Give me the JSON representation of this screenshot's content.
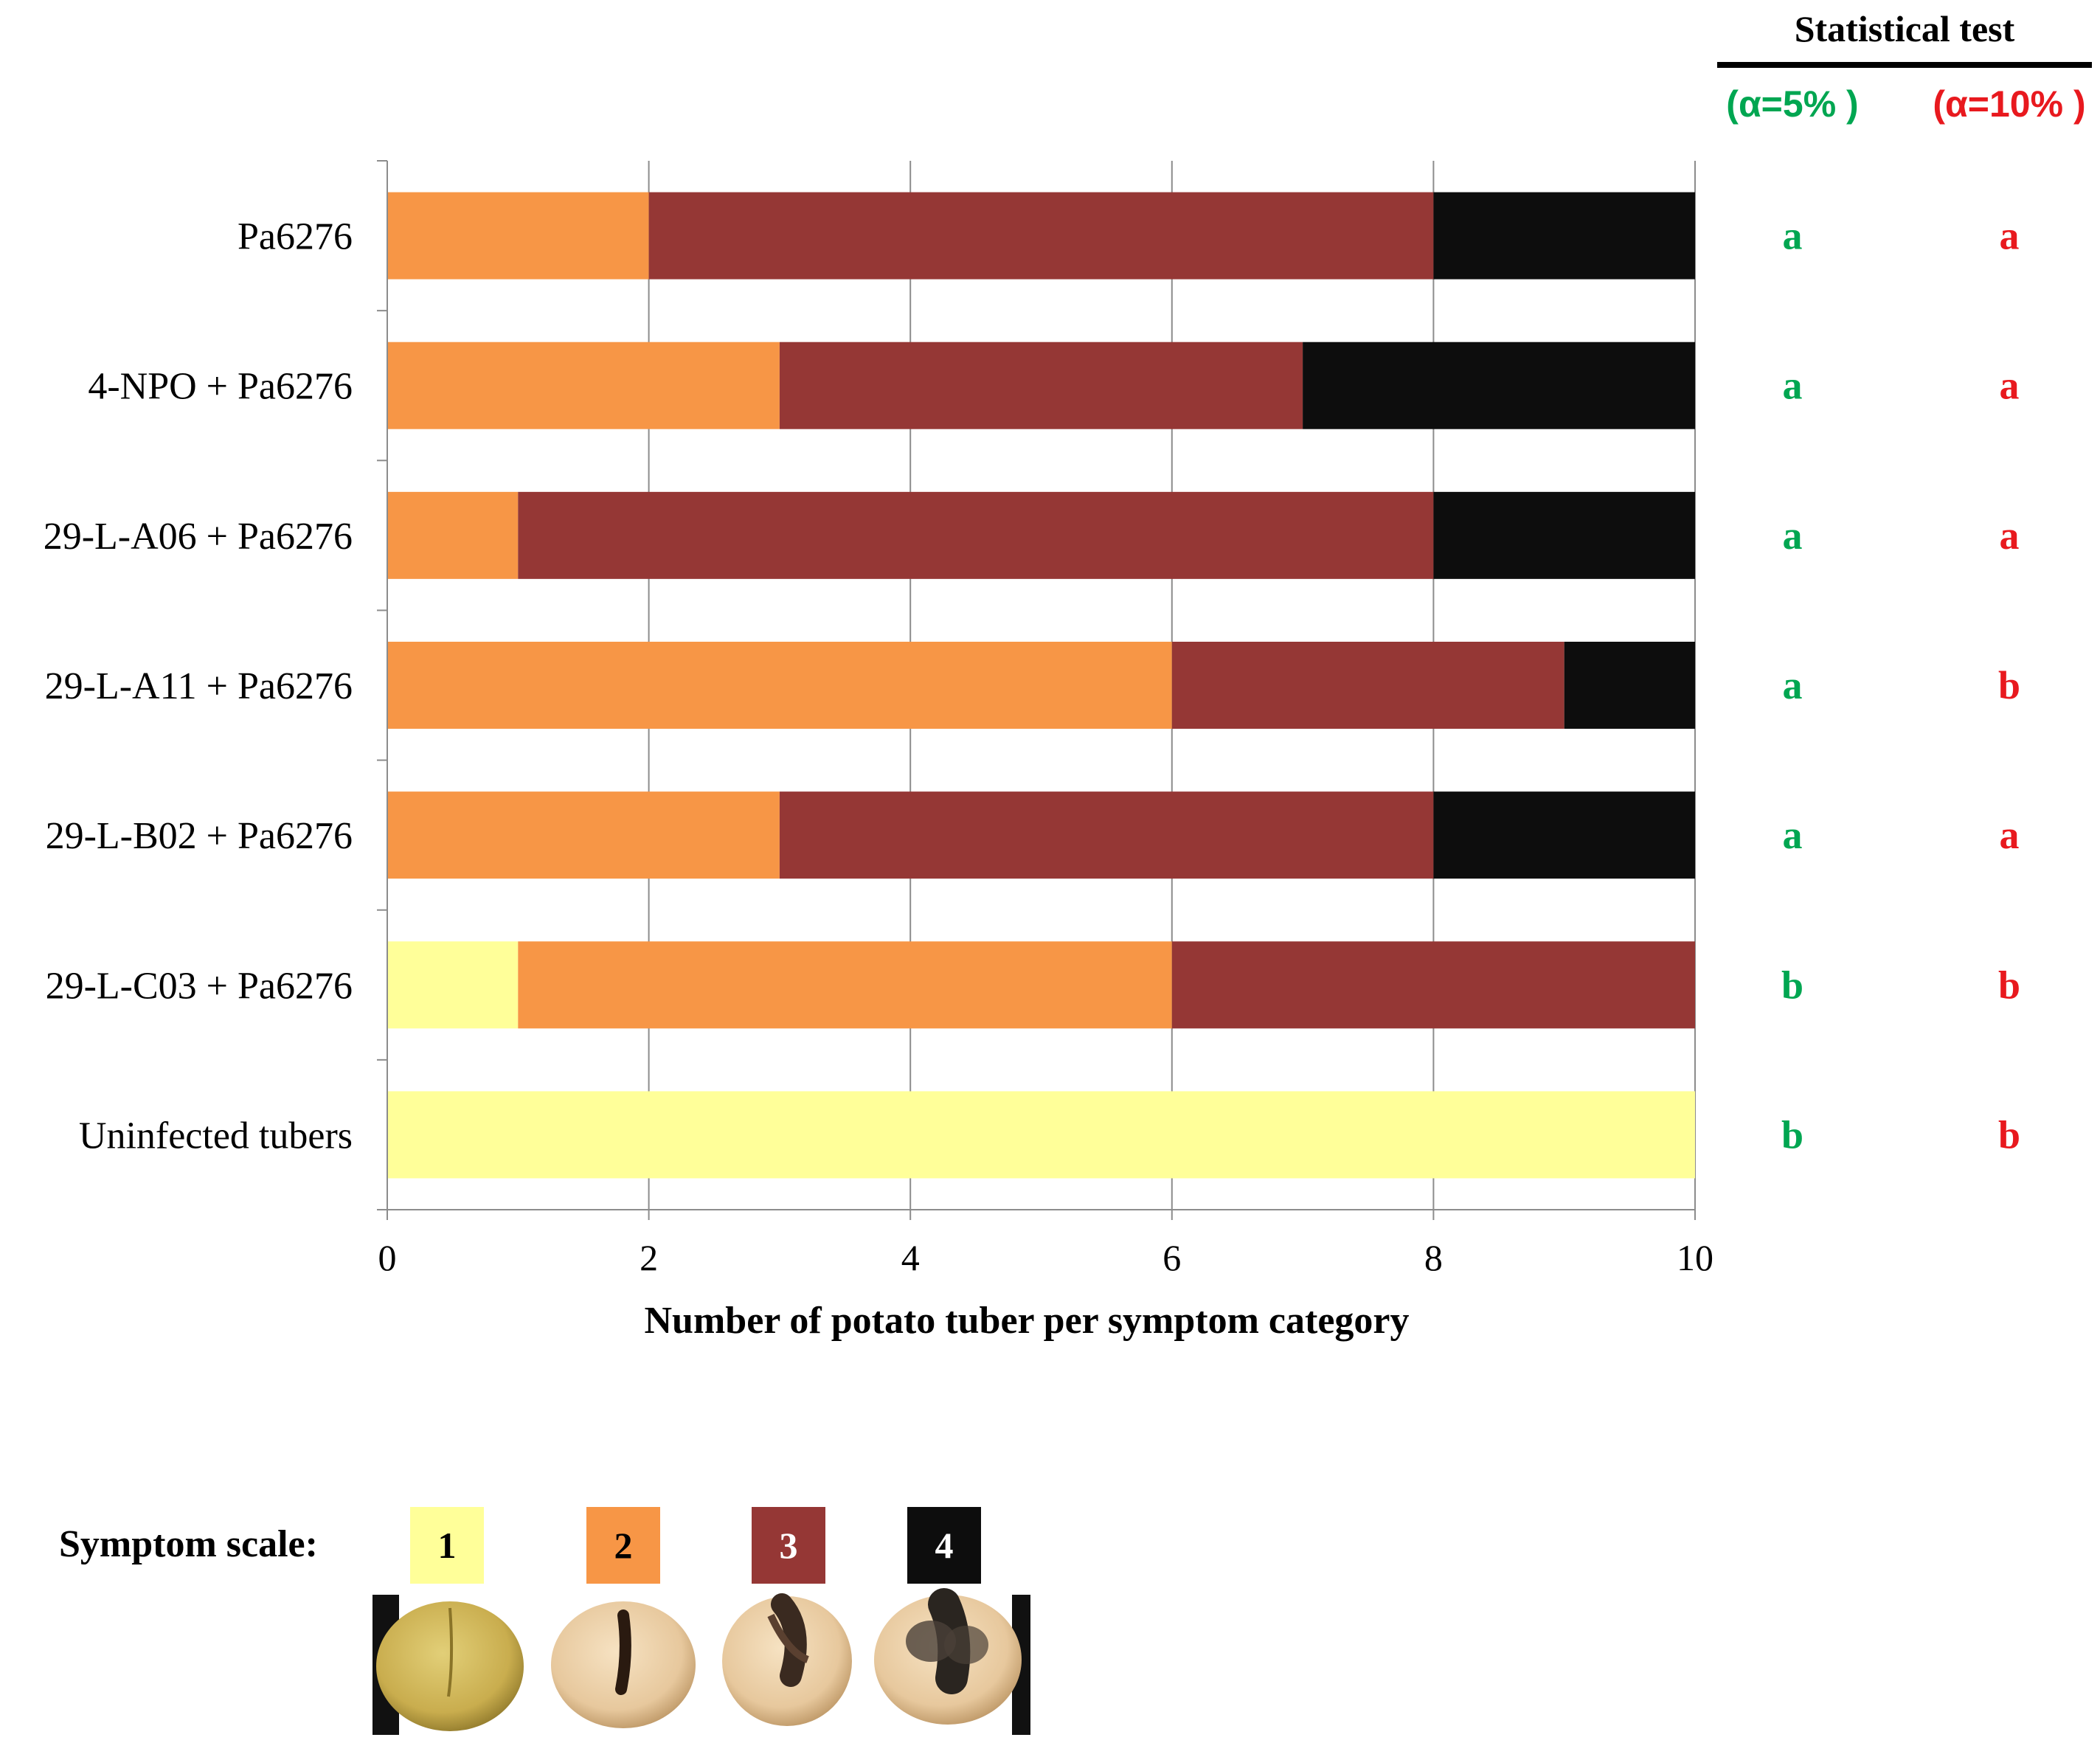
{
  "chart_data": {
    "type": "bar",
    "orientation": "horizontal",
    "stacked": true,
    "categories": [
      "Pa6276",
      "4-NPO + Pa6276",
      "29-L-A06 + Pa6276",
      "29-L-A11 + Pa6276",
      "29-L-B02 + Pa6276",
      "29-L-C03 + Pa6276",
      "Uninfected tubers"
    ],
    "series": [
      {
        "name": "1",
        "color": "#FFFF99",
        "values": [
          0,
          0,
          0,
          0,
          0,
          1,
          10
        ]
      },
      {
        "name": "2",
        "color": "#F79646",
        "values": [
          2,
          3,
          1,
          6,
          3,
          5,
          0
        ]
      },
      {
        "name": "3",
        "color": "#953735",
        "values": [
          6,
          4,
          7,
          3,
          5,
          4,
          0
        ]
      },
      {
        "name": "4",
        "color": "#0D0D0D",
        "values": [
          2,
          3,
          2,
          1,
          2,
          0,
          0
        ]
      }
    ],
    "xlabel": "Number of potato tuber per symptom category",
    "xlim": [
      0,
      10
    ],
    "xticks": [
      "0",
      "2",
      "4",
      "6",
      "8",
      "10"
    ],
    "grid": "vertical",
    "stats": {
      "title": "Statistical test",
      "columns": [
        {
          "header": "(α=5% )",
          "color": "#00A651",
          "letters": [
            "a",
            "a",
            "a",
            "a",
            "a",
            "b",
            "b"
          ]
        },
        {
          "header": "(α=10% )",
          "color": "#E8191E",
          "letters": [
            "a",
            "a",
            "a",
            "b",
            "a",
            "b",
            "b"
          ]
        }
      ]
    },
    "symptom_scale": {
      "label": "Symptom scale:"
    }
  }
}
